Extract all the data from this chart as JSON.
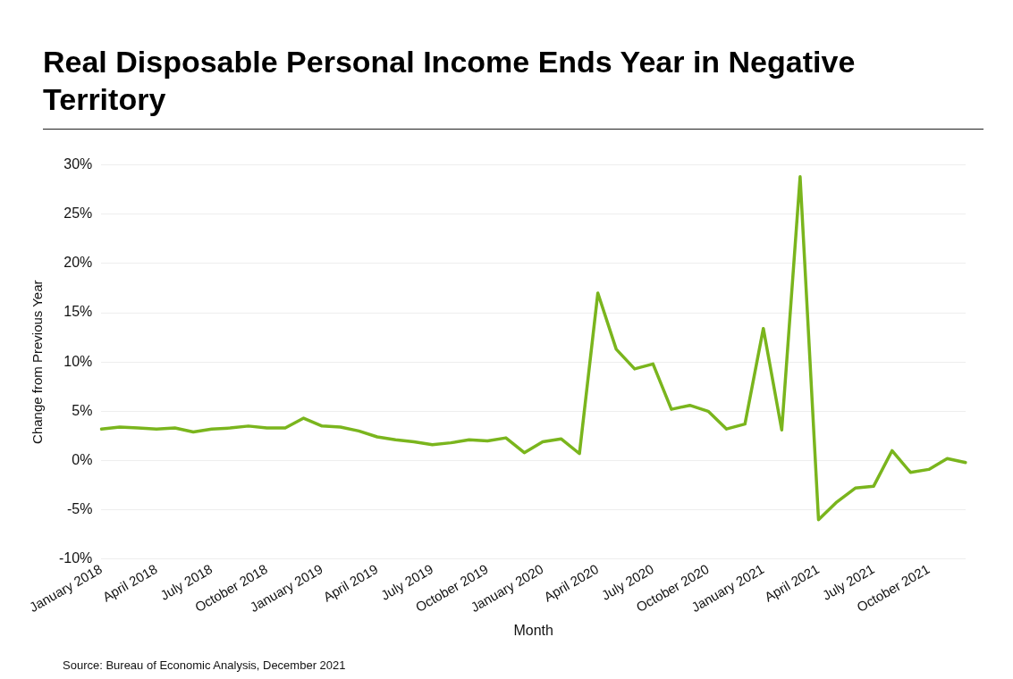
{
  "chart_data": {
    "type": "line",
    "title": "Real Disposable Personal Income Ends Year in Negative Territory",
    "xlabel": "Month",
    "ylabel": "Change from Previous Year",
    "categories": [
      "January 2018",
      null,
      null,
      "April 2018",
      null,
      null,
      "July 2018",
      null,
      null,
      "October 2018",
      null,
      null,
      "January 2019",
      null,
      null,
      "April 2019",
      null,
      null,
      "July 2019",
      null,
      null,
      "October 2019",
      null,
      null,
      "January 2020",
      null,
      null,
      "April 2020",
      null,
      null,
      "July 2020",
      null,
      null,
      "October 2020",
      null,
      null,
      "January 2021",
      null,
      null,
      "April 2021",
      null,
      null,
      "July 2021",
      null,
      null,
      "October 2021",
      null,
      null
    ],
    "series": [
      {
        "color": "#7ab51d",
        "values": [
          3.2,
          3.4,
          3.3,
          3.2,
          3.3,
          2.9,
          3.2,
          3.3,
          3.5,
          3.3,
          3.3,
          4.3,
          3.5,
          3.4,
          3.0,
          2.4,
          2.1,
          1.9,
          1.6,
          1.8,
          2.1,
          2.0,
          2.3,
          0.8,
          1.9,
          2.2,
          0.7,
          17.0,
          11.3,
          9.3,
          9.8,
          5.2,
          5.6,
          5.0,
          3.2,
          3.7,
          13.4,
          3.1,
          28.8,
          -6.0,
          -4.2,
          -2.8,
          -2.6,
          1.0,
          -1.2,
          -0.9,
          0.2,
          -0.2
        ]
      }
    ],
    "ylim": [
      -10,
      30
    ],
    "yticks": [
      {
        "value": -10,
        "label": "-10%"
      },
      {
        "value": -5,
        "label": "-5%"
      },
      {
        "value": 0,
        "label": "0%"
      },
      {
        "value": 5,
        "label": "5%"
      },
      {
        "value": 10,
        "label": "10%"
      },
      {
        "value": 15,
        "label": "15%"
      },
      {
        "value": 20,
        "label": "20%"
      },
      {
        "value": 25,
        "label": "25%"
      },
      {
        "value": 30,
        "label": "30%"
      }
    ],
    "grid": "y",
    "legend": false,
    "marker": "none",
    "line_style": "solid",
    "annotations": [
      "Source: Bureau of Economic Analysis, December 2021"
    ]
  }
}
